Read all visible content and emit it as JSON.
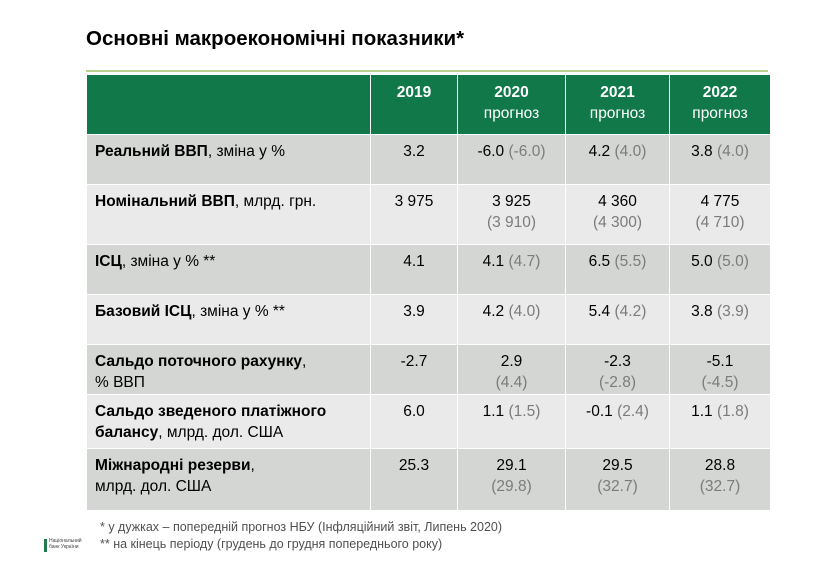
{
  "title": "Основні макроекономічні показники*",
  "colors": {
    "header_bg": "#11784a",
    "row_odd": "#d3d6d3",
    "row_even": "#eaeaea",
    "previous_forecast": "#7b7b7b"
  },
  "table": {
    "columns": [
      {
        "year": "2019",
        "sub": ""
      },
      {
        "year": "2020",
        "sub": "прогноз"
      },
      {
        "year": "2021",
        "sub": "прогноз"
      },
      {
        "year": "2022",
        "sub": "прогноз"
      }
    ],
    "rows": [
      {
        "label_bold": "Реальний ВВП",
        "label_rest": ", зміна у %",
        "label_bold2": "",
        "label_rest2": "",
        "cells": [
          {
            "v": "3.2",
            "p": ""
          },
          {
            "v": "-6.0",
            "p": "(-6.0)"
          },
          {
            "v": "4.2",
            "p": "(4.0)"
          },
          {
            "v": "3.8",
            "p": "(4.0)"
          }
        ]
      },
      {
        "label_bold": "Номінальний ВВП",
        "label_rest": ", млрд. грн.",
        "label_bold2": "",
        "label_rest2": "",
        "cells": [
          {
            "v": "3 975",
            "p": ""
          },
          {
            "v": "3 925",
            "p": "(3 910)"
          },
          {
            "v": "4 360",
            "p": "(4 300)"
          },
          {
            "v": "4 775",
            "p": "(4 710)"
          }
        ]
      },
      {
        "label_bold": "ІСЦ",
        "label_rest": ", зміна у % **",
        "label_bold2": "",
        "label_rest2": "",
        "cells": [
          {
            "v": "4.1",
            "p": ""
          },
          {
            "v": "4.1",
            "p": "(4.7)"
          },
          {
            "v": "6.5",
            "p": "(5.5)"
          },
          {
            "v": "5.0",
            "p": "(5.0)"
          }
        ]
      },
      {
        "label_bold": "Базовий ІСЦ",
        "label_rest": ", зміна у % **",
        "label_bold2": "",
        "label_rest2": "",
        "cells": [
          {
            "v": "3.9",
            "p": ""
          },
          {
            "v": "4.2",
            "p": "(4.0)"
          },
          {
            "v": "5.4",
            "p": "(4.2)"
          },
          {
            "v": "3.8",
            "p": "(3.9)"
          }
        ]
      },
      {
        "label_bold": "Сальдо поточного рахунку",
        "label_rest": ",",
        "label_bold2": "",
        "label_rest2": "% ВВП",
        "cells": [
          {
            "v": "-2.7",
            "p": ""
          },
          {
            "v": "2.9",
            "p": "(4.4)"
          },
          {
            "v": "-2.3",
            "p": "(-2.8)"
          },
          {
            "v": "-5.1",
            "p": "(-4.5)"
          }
        ]
      },
      {
        "label_bold": "Сальдо зведеного платіжного",
        "label_rest": "",
        "label_bold2": "балансу",
        "label_rest2": ", млрд. дол. США",
        "cells": [
          {
            "v": "6.0",
            "p": ""
          },
          {
            "v": "1.1",
            "p": "(1.5)"
          },
          {
            "v": "-0.1",
            "p": "(2.4)"
          },
          {
            "v": "1.1",
            "p": "(1.8)"
          }
        ]
      },
      {
        "label_bold": "Міжнародні резерви",
        "label_rest": ",",
        "label_bold2": "",
        "label_rest2": "млрд. дол. США",
        "cells": [
          {
            "v": "25.3",
            "p": ""
          },
          {
            "v": "29.1",
            "p": "(29.8)"
          },
          {
            "v": "29.5",
            "p": "(32.7)"
          },
          {
            "v": "28.8",
            "p": "(32.7)"
          }
        ]
      }
    ]
  },
  "notes": [
    "* у дужках – попередній прогноз НБУ (Інфляційний звіт, Липень 2020)",
    "** на кінець періоду (грудень до грудня попереднього року)"
  ],
  "logo": {
    "line1": "Національний",
    "line2": "банк України"
  }
}
